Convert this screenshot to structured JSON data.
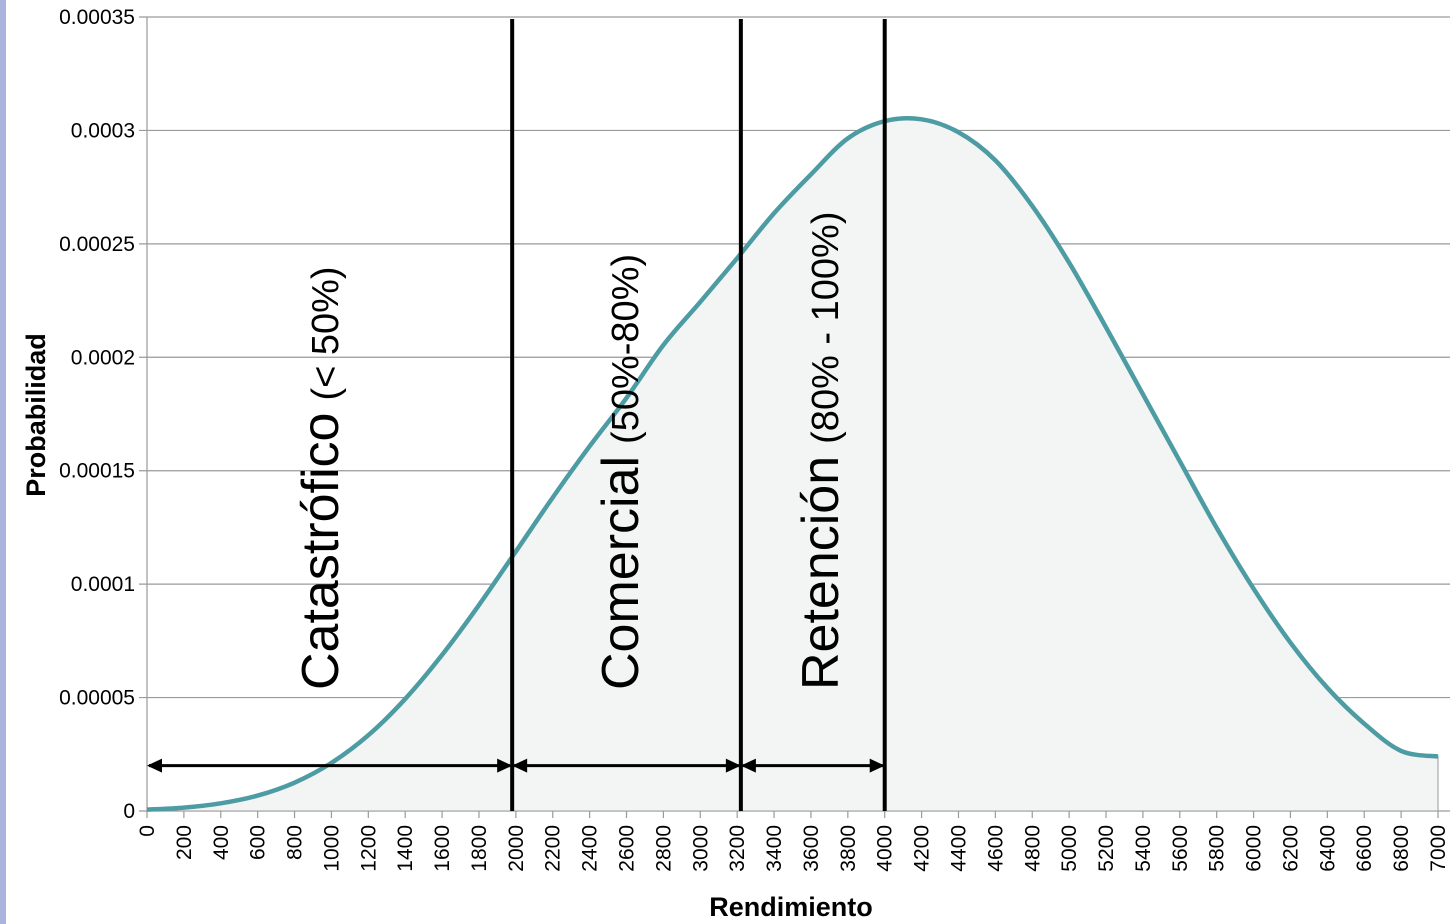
{
  "chart_data": {
    "type": "area",
    "xlabel": "Rendimiento",
    "ylabel": "Probabilidad",
    "xlim": [
      0,
      7000
    ],
    "ylim": [
      0,
      0.00035
    ],
    "x_ticks": [
      "0",
      "200",
      "400",
      "600",
      "800",
      "1000",
      "1200",
      "1400",
      "1600",
      "1800",
      "2000",
      "2200",
      "2400",
      "2600",
      "2800",
      "3000",
      "3200",
      "3400",
      "3600",
      "3800",
      "4000",
      "4200",
      "4400",
      "4600",
      "4800",
      "5000",
      "5200",
      "5400",
      "5600",
      "5800",
      "6000",
      "6200",
      "6400",
      "6600",
      "6800",
      "7000"
    ],
    "y_ticks": [
      "0",
      "0.00005",
      "0.0001",
      "0.00015",
      "0.0002",
      "0.00025",
      "0.0003",
      "0.00035"
    ],
    "grid": true,
    "series": [
      {
        "x": [
          0,
          200,
          400,
          600,
          800,
          1000,
          1200,
          1400,
          1600,
          1800,
          2000,
          2200,
          2400,
          2600,
          2800,
          3000,
          3200,
          3400,
          3600,
          3800,
          4000,
          4200,
          4400,
          4600,
          4800,
          5000,
          5200,
          5400,
          5600,
          5800,
          6000,
          6200,
          6400,
          6600,
          6800,
          7000
        ],
        "values": [
          6e-07,
          1.5e-06,
          3.4e-06,
          6.8e-06,
          1.25e-05,
          2.12e-05,
          3.34e-05,
          4.94e-05,
          6.88e-05,
          9.08e-05,
          0.0001144,
          0.0001382,
          0.0001608,
          0.0001821,
          0.0002054,
          0.0002244,
          0.0002437,
          0.0002635,
          0.0002806,
          0.0002965,
          0.0003041,
          0.0003049,
          0.0002992,
          0.0002868,
          0.0002667,
          0.0002417,
          0.0002132,
          0.0001837,
          0.0001542,
          0.0001248,
          9.8e-05,
          7.42e-05,
          5.43e-05,
          3.85e-05,
          2.65e-05,
          2.4e-05
        ],
        "line_color": "#4e9ca3",
        "fill_color": "#f3f5f4"
      }
    ],
    "boundaries": [
      1980,
      3220,
      4000
    ],
    "zones": [
      {
        "name": "Catastrófico",
        "range": "(< 50%)",
        "from": 0,
        "to": 1980
      },
      {
        "name": "Comercial",
        "range": "(50%-80%)",
        "from": 1980,
        "to": 3220
      },
      {
        "name": "Retención",
        "range": "(80% - 100%)",
        "from": 3220,
        "to": 4000
      }
    ],
    "arrows_y": 2e-05
  }
}
